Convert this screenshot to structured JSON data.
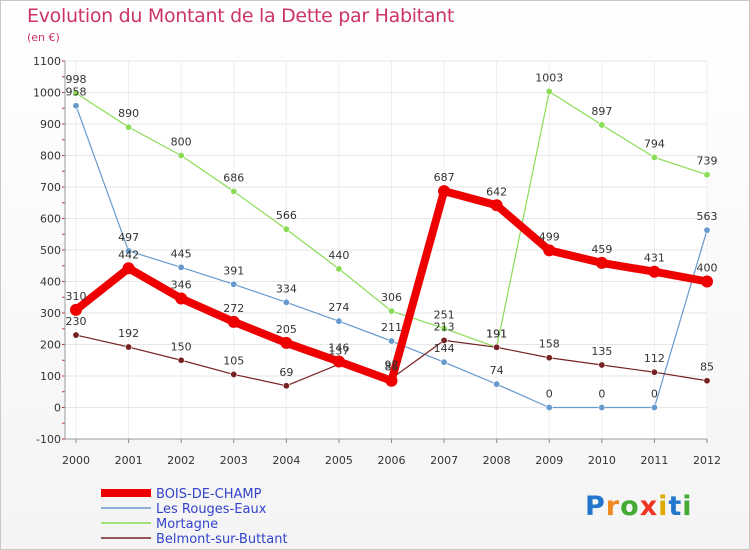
{
  "title": "Evolution du Montant de la Dette par Habitant",
  "subtitle": "(en €)",
  "logo": {
    "letters": [
      "P",
      "r",
      "o",
      "x",
      "i",
      "t",
      "i"
    ],
    "colors": [
      "#2277cc",
      "#ee8822",
      "#44aa33",
      "#ee3322",
      "#ddaa00",
      "#2277cc",
      "#44aa33"
    ]
  },
  "chart_data": {
    "type": "line",
    "title": "Evolution du Montant de la Dette par Habitant",
    "ylabel": "(en €)",
    "xlabel": "",
    "x": [
      "2000",
      "2001",
      "2002",
      "2003",
      "2004",
      "2005",
      "2006",
      "2007",
      "2008",
      "2009",
      "2010",
      "2011",
      "2012"
    ],
    "ylim": [
      -100,
      1100
    ],
    "yticks": [
      "-100",
      "0",
      "100",
      "200",
      "300",
      "400",
      "500",
      "600",
      "700",
      "800",
      "900",
      "1000",
      "1100"
    ],
    "grid": true,
    "legend_position": "bottom-left",
    "series": [
      {
        "name": "BOIS-DE-CHAMP",
        "color": "#ee0000",
        "values": [
          310,
          442,
          346,
          272,
          205,
          146,
          85,
          687,
          642,
          499,
          459,
          431,
          400
        ],
        "labels": [
          "310",
          "442",
          "346",
          "272",
          "205",
          "146",
          "85",
          "687",
          "642",
          "499",
          "459",
          "431",
          "400"
        ]
      },
      {
        "name": "Les Rouges-Eaux",
        "color": "#6699cc",
        "values": [
          958,
          497,
          445,
          391,
          334,
          274,
          211,
          144,
          74,
          0,
          0,
          0,
          563
        ],
        "labels": [
          "958",
          "497",
          "445",
          "391",
          "334",
          "274",
          "211",
          "144",
          "74",
          "0",
          "0",
          "0",
          "563"
        ]
      },
      {
        "name": "Mortagne",
        "color": "#88dd55",
        "values": [
          998,
          890,
          800,
          686,
          566,
          440,
          306,
          251,
          191,
          1003,
          897,
          794,
          739
        ],
        "labels": [
          "998",
          "890",
          "800",
          "686",
          "566",
          "440",
          "306",
          "251",
          "191",
          "1003",
          "897",
          "794",
          "739"
        ]
      },
      {
        "name": "Belmont-sur-Buttant",
        "color": "#772222",
        "values": [
          230,
          192,
          150,
          105,
          69,
          137,
          92,
          213,
          191,
          158,
          135,
          112,
          85
        ],
        "labels": [
          "230",
          "192",
          "150",
          "105",
          "69",
          "137",
          "92",
          "213",
          "191",
          "158",
          "135",
          "112",
          "85"
        ]
      }
    ]
  }
}
